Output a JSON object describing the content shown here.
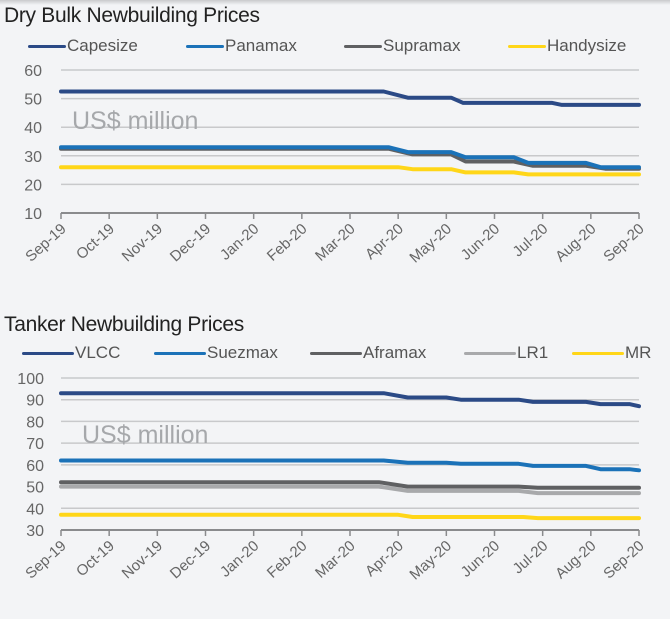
{
  "chart_data": [
    {
      "type": "line",
      "title": "Dry Bulk Newbuilding Prices",
      "unit_annotation": "US$ million",
      "xlabel": "",
      "ylabel": "US$ million",
      "categories": [
        "Sep-19",
        "Oct-19",
        "Nov-19",
        "Dec-19",
        "Jan-20",
        "Feb-20",
        "Mar-20",
        "Apr-20",
        "May-20",
        "Jun-20",
        "Jul-20",
        "Aug-20",
        "Sep-20"
      ],
      "ylim": [
        10,
        60
      ],
      "yticks": [
        10,
        20,
        30,
        40,
        50,
        60
      ],
      "grid": true,
      "legend_position": "top",
      "series": [
        {
          "name": "Capesize",
          "color": "#2b4a86",
          "x": [
            0,
            6.7,
            7.2,
            8.1,
            8.35,
            10.2,
            10.4,
            12
          ],
          "values": [
            52.5,
            52.5,
            50.3,
            50.3,
            48.5,
            48.5,
            47.8,
            47.8
          ]
        },
        {
          "name": "Panamax",
          "color": "#1b72b8",
          "x": [
            0,
            6.8,
            7.2,
            8.1,
            8.4,
            9.4,
            9.7,
            10.9,
            11.2,
            12
          ],
          "values": [
            33,
            33,
            31.3,
            31.3,
            29.5,
            29.5,
            27.5,
            27.5,
            26,
            26
          ]
        },
        {
          "name": "Supramax",
          "color": "#5f6062",
          "x": [
            0,
            6.8,
            7.3,
            8.1,
            8.4,
            9.4,
            9.8,
            10.9,
            11.3,
            12
          ],
          "values": [
            32.5,
            32.5,
            30.5,
            30.5,
            28,
            28,
            26.5,
            26.5,
            25.5,
            25.5
          ]
        },
        {
          "name": "Handysize",
          "color": "#ffd618",
          "x": [
            0,
            7.0,
            7.3,
            8.1,
            8.4,
            9.4,
            9.7,
            12
          ],
          "values": [
            26,
            26,
            25.3,
            25.3,
            24.2,
            24.2,
            23.5,
            23.5
          ]
        }
      ]
    },
    {
      "type": "line",
      "title": "Tanker Newbuilding Prices",
      "unit_annotation": "US$ million",
      "xlabel": "",
      "ylabel": "US$ million",
      "categories": [
        "Sep-19",
        "Oct-19",
        "Nov-19",
        "Dec-19",
        "Jan-20",
        "Feb-20",
        "Mar-20",
        "Apr-20",
        "May-20",
        "Jun-20",
        "Jul-20",
        "Aug-20",
        "Sep-20"
      ],
      "ylim": [
        30,
        100
      ],
      "yticks": [
        30,
        40,
        50,
        60,
        70,
        80,
        90,
        100
      ],
      "grid": true,
      "legend_position": "top",
      "series": [
        {
          "name": "VLCC",
          "color": "#2b4a86",
          "x": [
            0,
            6.7,
            7.2,
            8.0,
            8.3,
            9.5,
            9.8,
            10.9,
            11.2,
            11.8,
            12
          ],
          "values": [
            93,
            93,
            91,
            91,
            90,
            90,
            89,
            89,
            88,
            88,
            87
          ]
        },
        {
          "name": "Suezmax",
          "color": "#1b72b8",
          "x": [
            0,
            6.7,
            7.2,
            8.0,
            8.3,
            9.5,
            9.8,
            10.9,
            11.2,
            11.8,
            12
          ],
          "values": [
            62,
            62,
            61,
            61,
            60.5,
            60.5,
            59.5,
            59.5,
            58,
            58,
            57.5
          ]
        },
        {
          "name": "Aframax",
          "color": "#5f6062",
          "x": [
            0,
            6.6,
            7.2,
            9.5,
            9.9,
            12
          ],
          "values": [
            52,
            52,
            50,
            50,
            49.5,
            49.5
          ]
        },
        {
          "name": "LR1",
          "color": "#a8a9ab",
          "x": [
            0,
            6.6,
            7.2,
            9.5,
            9.9,
            12
          ],
          "values": [
            50,
            50,
            48,
            48,
            47,
            47
          ]
        },
        {
          "name": "MR",
          "color": "#ffd618",
          "x": [
            0,
            7.0,
            7.3,
            9.6,
            9.9,
            12
          ],
          "values": [
            37,
            37,
            36,
            36,
            35.5,
            35.5
          ]
        }
      ]
    }
  ]
}
